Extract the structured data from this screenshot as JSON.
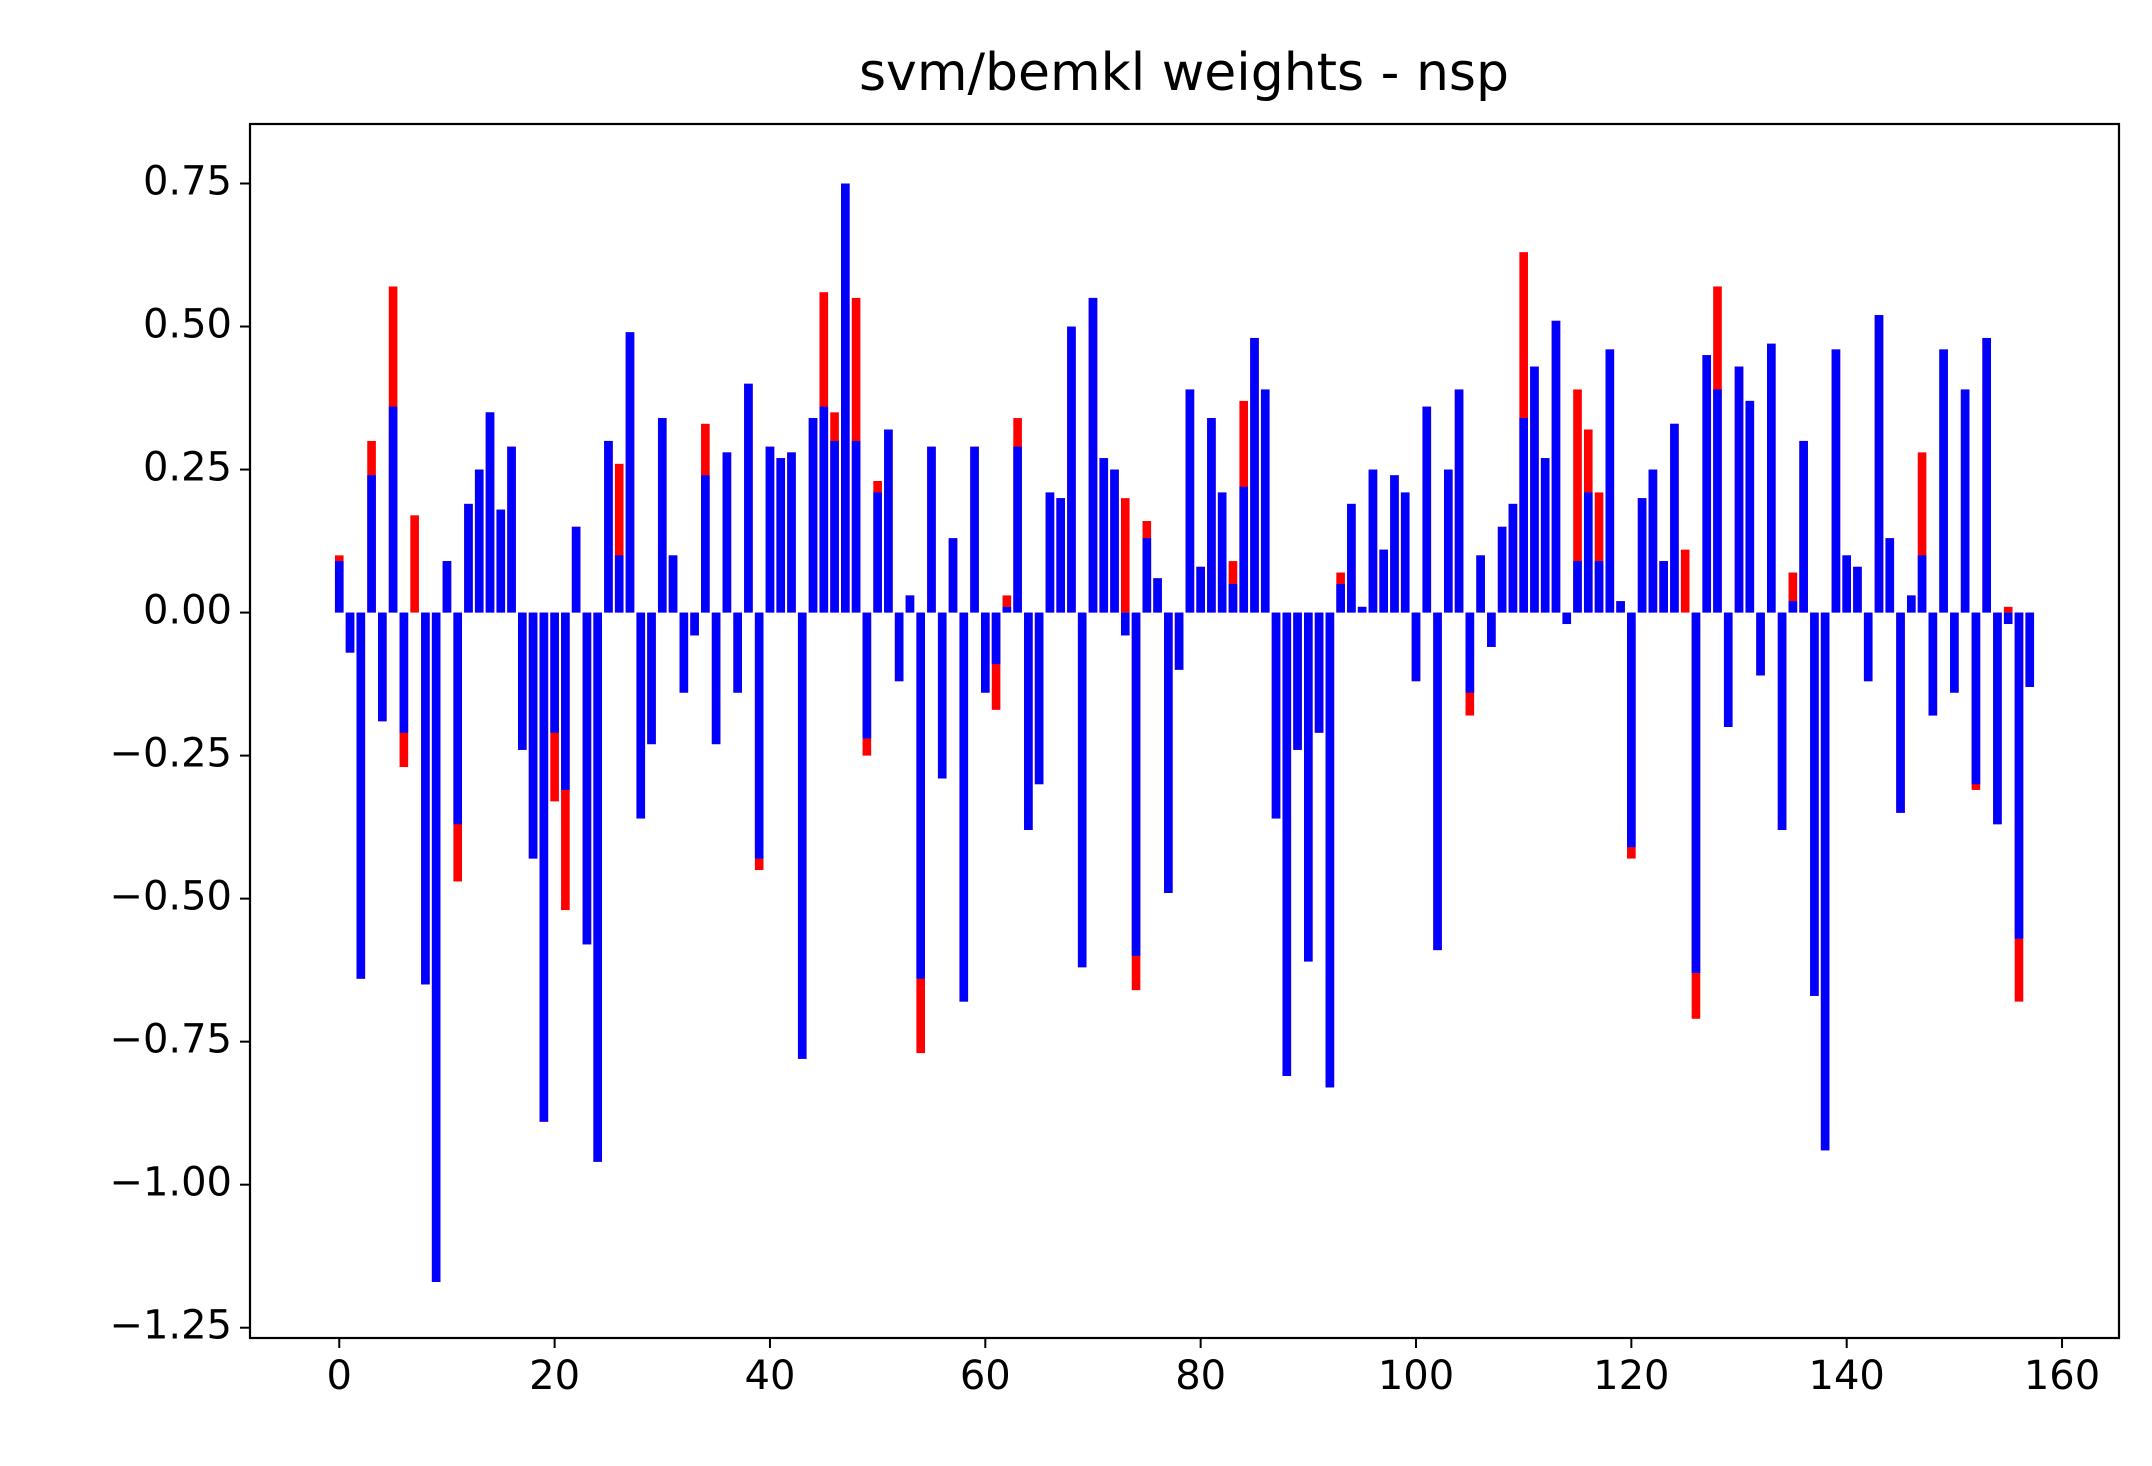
{
  "chart_data": {
    "type": "bar",
    "title": "svm/bemkl weights - nsp",
    "x": [
      0,
      1,
      2,
      3,
      4,
      5,
      6,
      7,
      8,
      9,
      10,
      11,
      12,
      13,
      14,
      15,
      16,
      17,
      18,
      19,
      20,
      21,
      22,
      23,
      24,
      25,
      26,
      27,
      28,
      29,
      30,
      31,
      32,
      33,
      34,
      35,
      36,
      37,
      38,
      39,
      40,
      41,
      42,
      43,
      44,
      45,
      46,
      47,
      48,
      49,
      50,
      51,
      52,
      53,
      54,
      55,
      56,
      57,
      58,
      59,
      60,
      61,
      62,
      63,
      64,
      65,
      66,
      67,
      68,
      69,
      70,
      71,
      72,
      73,
      74,
      75,
      76,
      77,
      78,
      79,
      80,
      81,
      82,
      83,
      84,
      85,
      86,
      87,
      88,
      89,
      90,
      91,
      92,
      93,
      94,
      95,
      96,
      97,
      98,
      99,
      100,
      101,
      102,
      103,
      104,
      105,
      106,
      107,
      108,
      109,
      110,
      111,
      112,
      113,
      114,
      115,
      116,
      117,
      118,
      119,
      120,
      121,
      122,
      123,
      124,
      125,
      126,
      127,
      128,
      129,
      130,
      131,
      132,
      133,
      134,
      135,
      136,
      137,
      138,
      139,
      140,
      141,
      142,
      143,
      144,
      145,
      146,
      147,
      148,
      149,
      150,
      151,
      152,
      153,
      154,
      155,
      156,
      157
    ],
    "series": [
      {
        "color": "#ff0000",
        "values": [
          0.1,
          -0.07,
          -0.64,
          0.3,
          -0.19,
          0.57,
          -0.27,
          0.17,
          -0.65,
          -1.17,
          0.09,
          -0.47,
          0.19,
          0.25,
          0.35,
          0.18,
          0.29,
          -0.24,
          -0.43,
          -0.89,
          -0.33,
          -0.52,
          0.15,
          -0.58,
          -0.96,
          0.3,
          0.26,
          0.49,
          -0.36,
          -0.23,
          0.34,
          0.1,
          -0.14,
          -0.04,
          0.33,
          -0.23,
          0.28,
          -0.14,
          0.4,
          -0.45,
          0.29,
          0.27,
          0.28,
          -0.78,
          0.34,
          0.56,
          0.35,
          0.75,
          0.55,
          -0.25,
          0.23,
          0.32,
          -0.12,
          0.03,
          -0.77,
          0.29,
          -0.29,
          0.13,
          -0.68,
          0.29,
          -0.14,
          -0.17,
          0.03,
          0.34,
          -0.38,
          -0.3,
          0.21,
          0.2,
          0.5,
          -0.62,
          0.55,
          0.27,
          0.25,
          0.2,
          -0.66,
          0.16,
          0.06,
          -0.49,
          -0.1,
          0.39,
          0.08,
          0.34,
          0.21,
          0.09,
          0.37,
          0.48,
          0.39,
          -0.36,
          -0.81,
          -0.24,
          -0.61,
          -0.21,
          -0.83,
          0.07,
          0.19,
          0.01,
          0.25,
          0.11,
          0.24,
          0.21,
          -0.12,
          0.36,
          -0.59,
          0.25,
          0.39,
          -0.18,
          0.1,
          -0.06,
          0.15,
          0.19,
          0.63,
          0.43,
          0.27,
          0.51,
          -0.02,
          0.39,
          0.32,
          0.21,
          0.46,
          0.02,
          -0.43,
          0.2,
          0.25,
          0.09,
          0.33,
          0.11,
          -0.71,
          0.45,
          0.57,
          -0.2,
          0.43,
          0.37,
          -0.11,
          0.47,
          -0.38,
          0.07,
          0.3,
          -0.67,
          -0.94,
          0.46,
          0.1,
          0.08,
          -0.12,
          0.52,
          0.13,
          -0.35,
          0.03,
          0.28,
          -0.18,
          0.46,
          -0.14,
          0.39,
          -0.31,
          0.48,
          -0.37,
          0.01,
          -0.68,
          -0.13
        ]
      },
      {
        "color": "#0000ff",
        "values": [
          0.09,
          -0.07,
          -0.64,
          0.24,
          -0.19,
          0.36,
          -0.21,
          0.0,
          -0.65,
          -1.17,
          0.09,
          -0.37,
          0.19,
          0.25,
          0.35,
          0.18,
          0.29,
          -0.24,
          -0.43,
          -0.89,
          -0.21,
          -0.31,
          0.15,
          -0.58,
          -0.96,
          0.3,
          0.1,
          0.49,
          -0.36,
          -0.23,
          0.34,
          0.1,
          -0.14,
          -0.04,
          0.24,
          -0.23,
          0.28,
          -0.14,
          0.4,
          -0.43,
          0.29,
          0.27,
          0.28,
          -0.78,
          0.34,
          0.36,
          0.3,
          0.75,
          0.3,
          -0.22,
          0.21,
          0.32,
          -0.12,
          0.03,
          -0.64,
          0.29,
          -0.29,
          0.13,
          -0.68,
          0.29,
          -0.14,
          -0.09,
          0.01,
          0.29,
          -0.38,
          -0.3,
          0.21,
          0.2,
          0.5,
          -0.62,
          0.55,
          0.27,
          0.25,
          -0.04,
          -0.6,
          0.13,
          0.06,
          -0.49,
          -0.1,
          0.39,
          0.08,
          0.34,
          0.21,
          0.05,
          0.22,
          0.48,
          0.39,
          -0.36,
          -0.81,
          -0.24,
          -0.61,
          -0.21,
          -0.83,
          0.05,
          0.19,
          0.01,
          0.25,
          0.11,
          0.24,
          0.21,
          -0.12,
          0.36,
          -0.59,
          0.25,
          0.39,
          -0.14,
          0.1,
          -0.06,
          0.15,
          0.19,
          0.34,
          0.43,
          0.27,
          0.51,
          -0.02,
          0.09,
          0.21,
          0.09,
          0.46,
          0.02,
          -0.41,
          0.2,
          0.25,
          0.09,
          0.33,
          0.0,
          -0.63,
          0.45,
          0.39,
          -0.2,
          0.43,
          0.37,
          -0.11,
          0.47,
          -0.38,
          0.02,
          0.3,
          -0.67,
          -0.94,
          0.46,
          0.1,
          0.08,
          -0.12,
          0.52,
          0.13,
          -0.35,
          0.03,
          0.1,
          -0.18,
          0.46,
          -0.14,
          0.39,
          -0.3,
          0.48,
          -0.37,
          -0.02,
          -0.57,
          -0.13
        ]
      }
    ],
    "xlim": [
      -8.29,
      165.29
    ],
    "xticks": [
      0,
      20,
      40,
      60,
      80,
      100,
      120,
      140,
      160
    ],
    "ylim": [
      -1.268,
      0.854
    ],
    "yticks": [
      {
        "value": -1.25,
        "label": "−1.25"
      },
      {
        "value": -1.0,
        "label": "−1.00"
      },
      {
        "value": -0.75,
        "label": "−0.75"
      },
      {
        "value": -0.5,
        "label": "−0.50"
      },
      {
        "value": -0.25,
        "label": "−0.25"
      },
      {
        "value": 0,
        "label": "0.00"
      },
      {
        "value": 0.25,
        "label": "0.25"
      },
      {
        "value": 0.5,
        "label": "0.50"
      },
      {
        "value": 0.75,
        "label": "0.75"
      }
    ]
  }
}
